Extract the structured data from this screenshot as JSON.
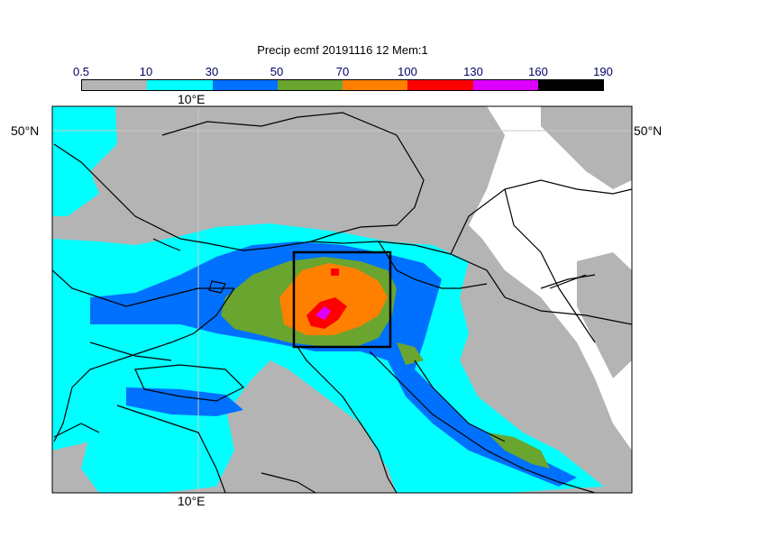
{
  "title": "Precip ecmf 20191116 12 Mem:1",
  "legend": {
    "labels": [
      "0.5",
      "10",
      "30",
      "50",
      "70",
      "100",
      "130",
      "160",
      "190"
    ],
    "colors": [
      "#b4b4b4",
      "#00ffff",
      "#0070ff",
      "#6aa530",
      "#ff8000",
      "#ff0000",
      "#dd00ff",
      "#000000"
    ]
  },
  "axes": {
    "lon_top": "10°E",
    "lon_bottom": "10°E",
    "lat_left": "50°N",
    "lat_right": "50°N"
  },
  "colors": {
    "land_outline": "#000000",
    "gridline": "#c8c8c8",
    "box": "#000000"
  }
}
